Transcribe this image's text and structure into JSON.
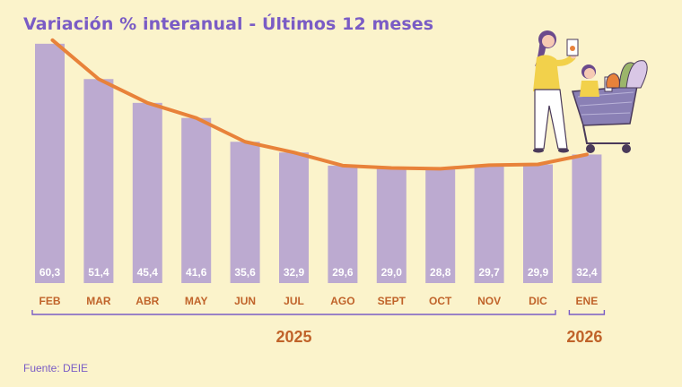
{
  "title": "Variación % interanual - Últimos 12 meses",
  "source": "Fuente: DEIE",
  "colors": {
    "bar": "#bcaad0",
    "line": "#e8823a",
    "axis": "#7a5cc5",
    "month": "#c0632a",
    "year": "#c0632a",
    "background": "#fbf3cb"
  },
  "chart_data": {
    "type": "bar",
    "title": "Variación % interanual - Últimos 12 meses",
    "categories": [
      "FEB",
      "MAR",
      "ABR",
      "MAY",
      "JUN",
      "JUL",
      "AGO",
      "SEPT",
      "OCT",
      "NOV",
      "DIC",
      "ENE"
    ],
    "series": [
      {
        "values": [
          60.3,
          51.4,
          45.4,
          41.6,
          35.6,
          32.9,
          29.6,
          29.0,
          28.8,
          29.7,
          29.9,
          32.4
        ]
      }
    ],
    "value_labels": [
      "60,3",
      "51,4",
      "45,4",
      "41,6",
      "35,6",
      "32,9",
      "29,6",
      "29,0",
      "28,8",
      "29,7",
      "29,9",
      "32,4"
    ],
    "overlay": "trend line",
    "years": [
      {
        "label": "2025",
        "from": "FEB",
        "to": "DIC"
      },
      {
        "label": "2026",
        "from": "ENE",
        "to": "ENE"
      }
    ],
    "ylim": [
      0,
      65
    ],
    "grid": false
  }
}
